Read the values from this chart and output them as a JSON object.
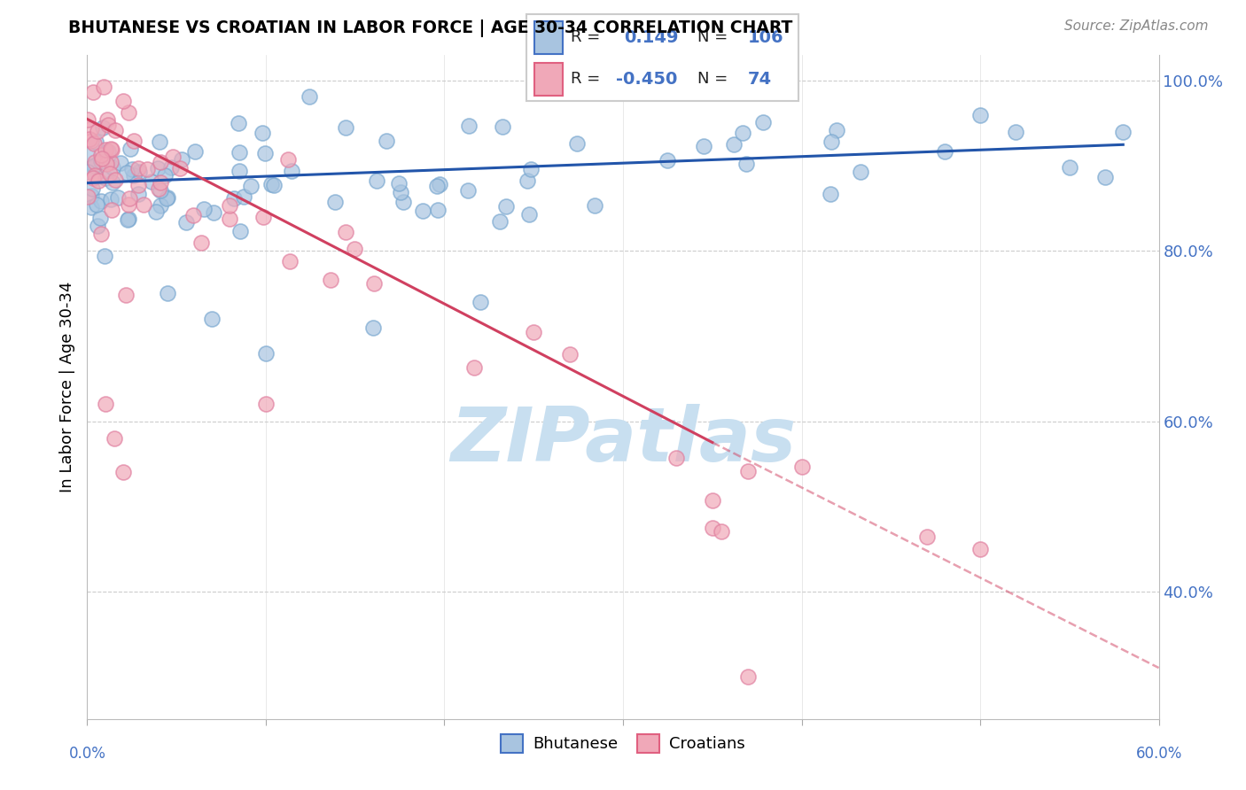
{
  "title": "BHUTANESE VS CROATIAN IN LABOR FORCE | AGE 30-34 CORRELATION CHART",
  "source_text": "Source: ZipAtlas.com",
  "ylabel": "In Labor Force | Age 30-34",
  "y_ticks": [
    40.0,
    60.0,
    80.0,
    100.0
  ],
  "y_tick_labels": [
    "40.0%",
    "60.0%",
    "80.0%",
    "100.0%"
  ],
  "x_min": 0.0,
  "x_max": 60.0,
  "y_min": 25.0,
  "y_max": 103.0,
  "blue_R": 0.149,
  "blue_N": 106,
  "pink_R": -0.45,
  "pink_N": 74,
  "blue_color": "#a8c4e0",
  "pink_color": "#f0a8b8",
  "blue_edge_color": "#7aa8d0",
  "pink_edge_color": "#e080a0",
  "blue_trend_color": "#2255aa",
  "pink_trend_color": "#d04060",
  "watermark_color": "#c8dff0",
  "legend_blue_face": "#a8c4e0",
  "legend_pink_face": "#f0a8b8",
  "blue_trend_x0": 0.0,
  "blue_trend_y0": 88.0,
  "blue_trend_x1": 58.0,
  "blue_trend_y1": 92.5,
  "pink_trend_x0": 0.0,
  "pink_trend_y0": 95.5,
  "pink_trend_x1": 35.0,
  "pink_trend_y1": 57.5,
  "pink_dash_x0": 35.0,
  "pink_dash_y0": 57.5,
  "pink_dash_x1": 60.0,
  "pink_dash_y1": 31.0
}
